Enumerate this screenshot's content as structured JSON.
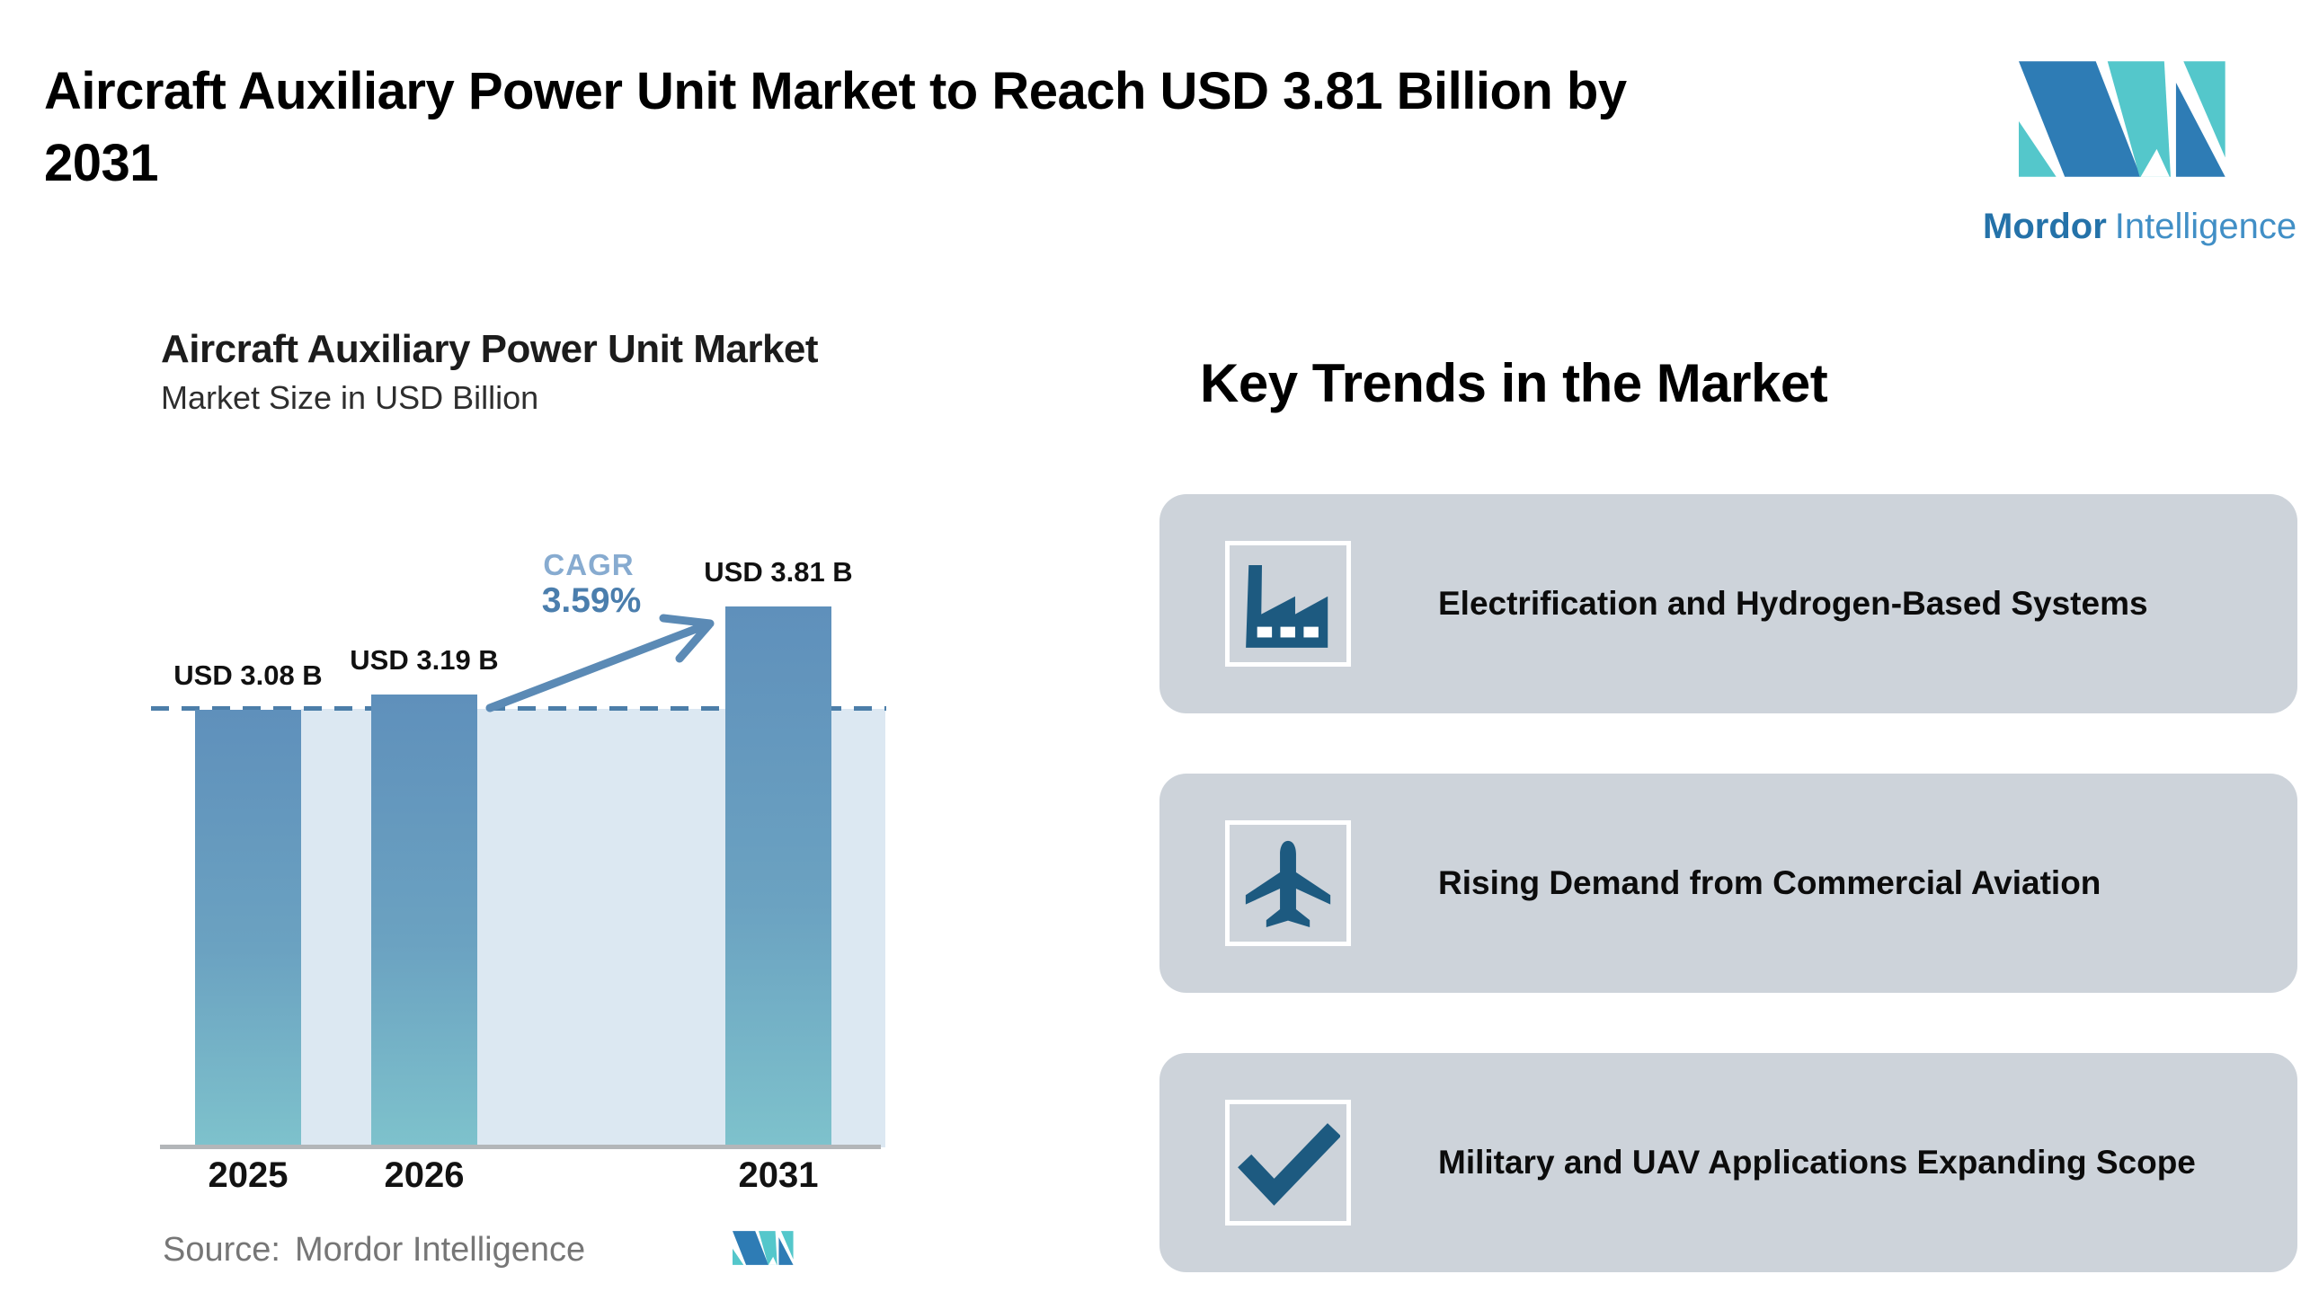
{
  "page": {
    "title_line1": "Aircraft Auxiliary Power Unit Market to Reach USD 3.81 Billion by",
    "title_line2": "2031"
  },
  "brand": {
    "wordmark_bold": "Mordor",
    "wordmark_light": "Intelligence",
    "colors": {
      "blue": "#2e7cb5",
      "teal": "#54c7cb",
      "text_blue": "#2472a9",
      "text_light_blue": "#418fc6"
    }
  },
  "chart_card": {
    "title": "Aircraft Auxiliary Power Unit Market",
    "subtitle": "Market Size in USD Billion",
    "cagr_label": "CAGR",
    "cagr_value": "3.59%",
    "source_label": "Source:",
    "source_value": "Mordor Intelligence"
  },
  "chart_data": {
    "type": "bar",
    "title": "Aircraft Auxiliary Power Unit Market",
    "subtitle": "Market Size in USD Billion",
    "unit": "USD billion",
    "categories": [
      "2025",
      "2026",
      "2031"
    ],
    "values": [
      3.08,
      3.19,
      3.81
    ],
    "bar_labels": [
      "USD 3.08 B",
      "USD 3.19 B",
      "USD 3.81 B"
    ],
    "cagr_label": "CAGR",
    "cagr_value": "3.59%",
    "reference_line_value": 3.08,
    "ylim": [
      0,
      4.3
    ],
    "grid": false,
    "legend": false,
    "source": "Mordor Intelligence",
    "colors": {
      "bar_gradient_top": "#5f90bb",
      "bar_gradient_mid": "#6ba2c1",
      "bar_gradient_bottom": "#7ec2cc",
      "reference_line": "#4c7ea9",
      "shaded_area": "#dce8f2",
      "arrow": "#5b8ab5",
      "cagr_label": "#87abd0",
      "cagr_value": "#4b7ead"
    }
  },
  "key_trends": {
    "heading": "Key Trends in the Market",
    "items": [
      {
        "icon": "factory-icon",
        "label": "Electrification and Hydrogen-Based Systems"
      },
      {
        "icon": "airplane-icon",
        "label": "Rising Demand from Commercial Aviation"
      },
      {
        "icon": "check-icon",
        "label": "Military and UAV Applications Expanding Scope"
      }
    ],
    "card_color": "#cdd3da",
    "icon_color": "#1d5a80"
  }
}
